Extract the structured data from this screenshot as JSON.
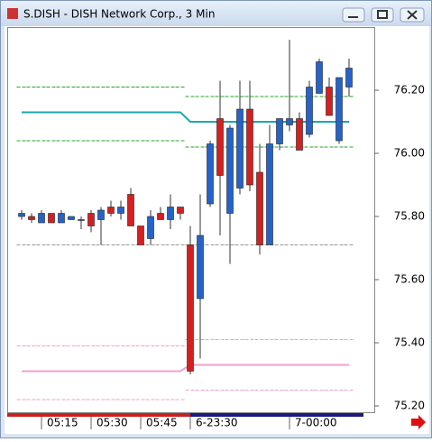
{
  "chart_data": {
    "type": "candlestick",
    "title": "S.DISH - DISH Network Corp., 3 Min",
    "categories": [
      null,
      null,
      "05:15",
      null,
      null,
      null,
      null,
      "05:30",
      null,
      null,
      null,
      null,
      "05:45",
      null,
      null,
      null,
      null,
      "6-23:30",
      null,
      null,
      null,
      null,
      null,
      null,
      null,
      null,
      null,
      "7-00:00",
      null,
      null,
      null,
      null,
      null,
      null
    ],
    "open": [
      75.8,
      75.8,
      75.78,
      75.81,
      75.78,
      75.79,
      75.79,
      75.81,
      75.79,
      75.83,
      75.81,
      75.87,
      75.77,
      75.73,
      75.81,
      75.79,
      75.83,
      75.71,
      75.54,
      75.84,
      76.11,
      75.81,
      75.89,
      76.14,
      75.94,
      75.71,
      76.03,
      76.09,
      76.11,
      76.06,
      76.19,
      76.21,
      76.04,
      76.21
    ],
    "high": [
      75.82,
      75.81,
      75.82,
      75.81,
      75.82,
      75.8,
      75.8,
      75.82,
      75.83,
      75.85,
      75.85,
      75.89,
      75.77,
      75.82,
      75.83,
      75.87,
      75.83,
      75.77,
      75.87,
      76.04,
      76.23,
      76.09,
      76.23,
      76.23,
      76.03,
      76.09,
      76.11,
      76.36,
      76.13,
      76.23,
      76.3,
      76.24,
      76.24,
      76.3
    ],
    "low": [
      75.79,
      75.78,
      75.78,
      75.78,
      75.78,
      75.79,
      75.76,
      75.75,
      75.71,
      75.8,
      75.79,
      75.77,
      75.71,
      75.71,
      75.79,
      75.76,
      75.79,
      75.3,
      75.35,
      75.83,
      75.74,
      75.65,
      75.87,
      75.88,
      75.68,
      75.71,
      76.01,
      76.07,
      76.01,
      76.05,
      76.19,
      76.12,
      76.03,
      76.18
    ],
    "close": [
      75.81,
      75.79,
      75.81,
      75.78,
      75.81,
      75.8,
      75.79,
      75.77,
      75.82,
      75.81,
      75.83,
      75.77,
      75.71,
      75.8,
      75.79,
      75.83,
      75.81,
      75.31,
      75.74,
      76.03,
      75.93,
      76.08,
      76.14,
      75.9,
      75.71,
      76.03,
      76.11,
      76.11,
      76.01,
      76.21,
      76.29,
      76.12,
      76.24,
      76.27
    ],
    "up_color": "#2563c9",
    "down_color": "#d42020",
    "overlays": [
      {
        "color": "#1aa8b0",
        "style": "solid",
        "values": [
          76.13,
          76.13,
          76.13,
          76.13,
          76.13,
          76.13,
          76.13,
          76.13,
          76.13,
          76.13,
          76.13,
          76.13,
          76.13,
          76.13,
          76.13,
          76.13,
          76.13,
          76.1,
          76.1,
          76.1,
          76.1,
          76.1,
          76.1,
          76.1,
          76.1,
          76.1,
          76.1,
          76.1,
          76.1,
          76.1,
          76.1,
          76.1,
          76.1,
          76.1
        ]
      },
      {
        "color": "#2ca02c",
        "style": "dash",
        "values": [
          76.21,
          76.21,
          76.21,
          76.21,
          76.21,
          76.21,
          76.21,
          76.21,
          76.21,
          76.21,
          76.21,
          76.21,
          76.21,
          76.21,
          76.21,
          76.21,
          76.21,
          76.18,
          76.18,
          76.18,
          76.18,
          76.18,
          76.18,
          76.18,
          76.18,
          76.18,
          76.18,
          76.18,
          76.18,
          76.18,
          76.18,
          76.18,
          76.18,
          76.18
        ]
      },
      {
        "color": "#2ca02c",
        "style": "dash",
        "values": [
          76.04,
          76.04,
          76.04,
          76.04,
          76.04,
          76.04,
          76.04,
          76.04,
          76.04,
          76.04,
          76.04,
          76.04,
          76.04,
          76.04,
          76.04,
          76.04,
          76.04,
          76.02,
          76.02,
          76.02,
          76.02,
          76.02,
          76.02,
          76.02,
          76.02,
          76.02,
          76.02,
          76.02,
          76.02,
          76.02,
          76.02,
          76.02,
          76.02,
          76.02
        ]
      },
      {
        "color": "#999999",
        "style": "dash",
        "values": [
          75.71,
          75.71,
          75.71,
          75.71,
          75.71,
          75.71,
          75.71,
          75.71,
          75.71,
          75.71,
          75.71,
          75.71,
          75.71,
          75.71,
          75.71,
          75.71,
          75.71,
          75.71,
          75.71,
          75.71,
          75.71,
          75.71,
          75.71,
          75.71,
          75.71,
          75.71,
          75.71,
          75.71,
          75.71,
          75.71,
          75.71,
          75.71,
          75.71,
          75.71
        ]
      },
      {
        "color": "#f0a0d0",
        "style": "dash",
        "values": [
          75.39,
          75.39,
          75.39,
          75.39,
          75.39,
          75.39,
          75.39,
          75.39,
          75.39,
          75.39,
          75.39,
          75.39,
          75.39,
          75.39,
          75.39,
          75.39,
          75.39,
          75.41,
          75.41,
          75.41,
          75.41,
          75.41,
          75.41,
          75.41,
          75.41,
          75.41,
          75.41,
          75.41,
          75.41,
          75.41,
          75.41,
          75.41,
          75.41,
          75.41
        ]
      },
      {
        "color": "#f0a0d0",
        "style": "solid",
        "values": [
          75.31,
          75.31,
          75.31,
          75.31,
          75.31,
          75.31,
          75.31,
          75.31,
          75.31,
          75.31,
          75.31,
          75.31,
          75.31,
          75.31,
          75.31,
          75.31,
          75.31,
          75.33,
          75.33,
          75.33,
          75.33,
          75.33,
          75.33,
          75.33,
          75.33,
          75.33,
          75.33,
          75.33,
          75.33,
          75.33,
          75.33,
          75.33,
          75.33,
          75.33
        ]
      },
      {
        "color": "#f0a0d0",
        "style": "dash",
        "values": [
          75.22,
          75.22,
          75.22,
          75.22,
          75.22,
          75.22,
          75.22,
          75.22,
          75.22,
          75.22,
          75.22,
          75.22,
          75.22,
          75.22,
          75.22,
          75.22,
          75.22,
          75.25,
          75.25,
          75.25,
          75.25,
          75.25,
          75.25,
          75.25,
          75.25,
          75.25,
          75.25,
          75.25,
          75.25,
          75.25,
          75.25,
          75.25,
          75.25,
          75.25
        ]
      }
    ],
    "ylim": [
      75.18,
      76.4
    ],
    "yticks": [
      {
        "value": 75.2,
        "label": "75.20"
      },
      {
        "value": 75.4,
        "label": "75.40"
      },
      {
        "value": 75.6,
        "label": "75.60"
      },
      {
        "value": 75.8,
        "label": "75.80"
      },
      {
        "value": 76.0,
        "label": "76.00"
      },
      {
        "value": 76.2,
        "label": "76.20"
      }
    ]
  }
}
